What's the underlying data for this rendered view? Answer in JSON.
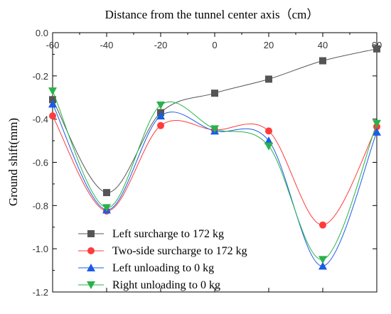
{
  "chart_data": {
    "type": "line",
    "title": "Distance from the tunnel center axis（cm）",
    "xlabel": "",
    "ylabel": "Ground shift(mm)",
    "x": [
      -60,
      -40,
      -20,
      0,
      20,
      40,
      60
    ],
    "xlim": [
      -60,
      60
    ],
    "ylim": [
      -1.2,
      0.0
    ],
    "xticks": [
      "-60",
      "-40",
      "-20",
      "0",
      "20",
      "40",
      "60"
    ],
    "yticks": [
      "0.0",
      "-0.2",
      "-0.4",
      "-0.6",
      "-0.8",
      "-1.0",
      "-1.2"
    ],
    "grid": false,
    "legend_position": "bottom-left",
    "series": [
      {
        "name": "Left surcharge to 172 kg",
        "color": "#555555",
        "marker": "square",
        "values": [
          -0.31,
          -0.74,
          -0.37,
          -0.28,
          -0.215,
          -0.13,
          -0.075
        ]
      },
      {
        "name": "Two-side surcharge to 172 kg",
        "color": "#ff3b3b",
        "marker": "circle",
        "values": [
          -0.385,
          -0.825,
          -0.43,
          -0.45,
          -0.455,
          -0.89,
          -0.435
        ]
      },
      {
        "name": "Left unloading to 0 kg",
        "color": "#1a5ce6",
        "marker": "triangle-up",
        "values": [
          -0.33,
          -0.82,
          -0.385,
          -0.455,
          -0.5,
          -1.08,
          -0.46
        ]
      },
      {
        "name": "Right unloading to 0 kg",
        "color": "#2ab24a",
        "marker": "triangle-down",
        "values": [
          -0.27,
          -0.81,
          -0.335,
          -0.445,
          -0.525,
          -1.05,
          -0.42
        ]
      }
    ]
  }
}
